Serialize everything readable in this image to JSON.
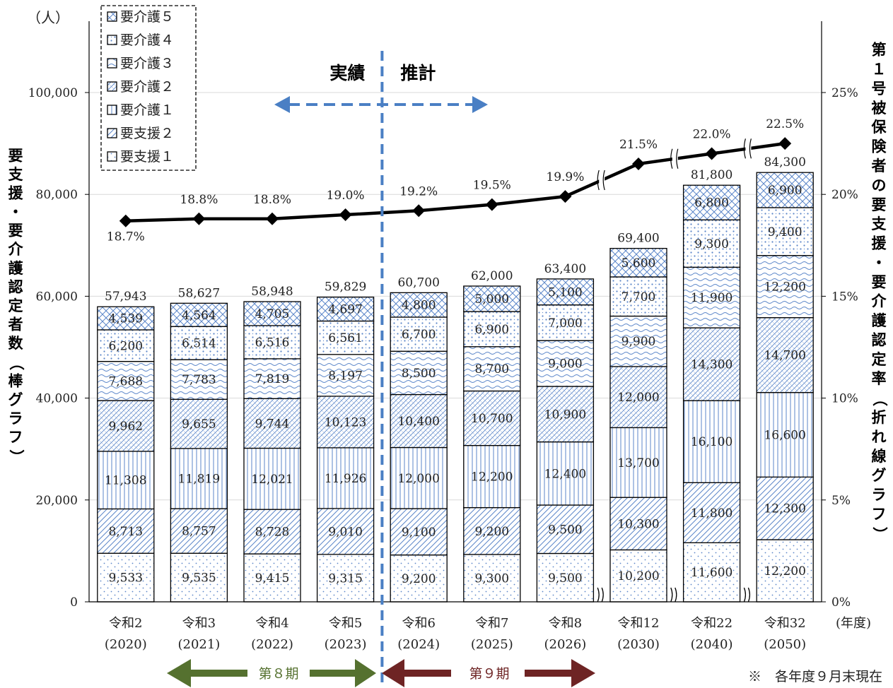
{
  "chart_data": {
    "type": "bar",
    "left_unit": "（人）",
    "right_unit": "",
    "ylabel_left": "要支援・要介護認定者数（棒グラフ）",
    "ylabel_right": "第１号被保険者の要支援・要介護認定率（折れ線グラフ）",
    "ylim_left": [
      0,
      100000
    ],
    "yticks_left": [
      "0",
      "20,000",
      "40,000",
      "60,000",
      "80,000",
      "100,000"
    ],
    "ylim_right": [
      0,
      25
    ],
    "yticks_right": [
      "0%",
      "5%",
      "10%",
      "15%",
      "20%",
      "25%"
    ],
    "x_unit": "(年度)",
    "categories": [
      {
        "era": "令和2",
        "year": "(2020)"
      },
      {
        "era": "令和3",
        "year": "(2021)"
      },
      {
        "era": "令和4",
        "year": "(2022)"
      },
      {
        "era": "令和5",
        "year": "(2023)"
      },
      {
        "era": "令和6",
        "year": "(2024)"
      },
      {
        "era": "令和7",
        "year": "(2025)"
      },
      {
        "era": "令和8",
        "year": "(2026)"
      },
      {
        "era": "令和12",
        "year": "(2030)"
      },
      {
        "era": "令和22",
        "year": "(2040)"
      },
      {
        "era": "令和32",
        "year": "(2050)"
      }
    ],
    "series": [
      {
        "name": "要支援１",
        "values": [
          9533,
          9535,
          9415,
          9315,
          9200,
          9300,
          9500,
          10200,
          11600,
          12200
        ],
        "labels": [
          "9,533",
          "9,535",
          "9,415",
          "9,315",
          "9,200",
          "9,300",
          "9,500",
          "10,200",
          "11,600",
          "12,200"
        ]
      },
      {
        "name": "要支援２",
        "values": [
          8713,
          8757,
          8728,
          9010,
          9100,
          9200,
          9500,
          10300,
          11800,
          12300
        ],
        "labels": [
          "8,713",
          "8,757",
          "8,728",
          "9,010",
          "9,100",
          "9,200",
          "9,500",
          "10,300",
          "11,800",
          "12,300"
        ]
      },
      {
        "name": "要介護１",
        "values": [
          11308,
          11819,
          12021,
          11926,
          12000,
          12200,
          12400,
          13700,
          16100,
          16600
        ],
        "labels": [
          "11,308",
          "11,819",
          "12,021",
          "11,926",
          "12,000",
          "12,200",
          "12,400",
          "13,700",
          "16,100",
          "16,600"
        ]
      },
      {
        "name": "要介護２",
        "values": [
          9962,
          9655,
          9744,
          10123,
          10400,
          10700,
          10900,
          12000,
          14300,
          14700
        ],
        "labels": [
          "9,962",
          "9,655",
          "9,744",
          "10,123",
          "10,400",
          "10,700",
          "10,900",
          "12,000",
          "14,300",
          "14,700"
        ]
      },
      {
        "name": "要介護３",
        "values": [
          7688,
          7783,
          7819,
          8197,
          8500,
          8700,
          9000,
          9900,
          11900,
          12200
        ],
        "labels": [
          "7,688",
          "7,783",
          "7,819",
          "8,197",
          "8,500",
          "8,700",
          "9,000",
          "9,900",
          "11,900",
          "12,200"
        ]
      },
      {
        "name": "要介護４",
        "values": [
          6200,
          6514,
          6516,
          6561,
          6700,
          6900,
          7000,
          7700,
          9300,
          9400
        ],
        "labels": [
          "6,200",
          "6,514",
          "6,516",
          "6,561",
          "6,700",
          "6,900",
          "7,000",
          "7,700",
          "9,300",
          "9,400"
        ]
      },
      {
        "name": "要介護５",
        "values": [
          4539,
          4564,
          4705,
          4697,
          4800,
          5000,
          5100,
          5600,
          6800,
          6900
        ],
        "labels": [
          "4,539",
          "4,564",
          "4,705",
          "4,697",
          "4,800",
          "5,000",
          "5,100",
          "5,600",
          "6,800",
          "6,900"
        ]
      }
    ],
    "totals": [
      57943,
      58627,
      58948,
      59829,
      60700,
      62000,
      63400,
      69400,
      81800,
      84300
    ],
    "total_labels": [
      "57,943",
      "58,627",
      "58,948",
      "59,829",
      "60,700",
      "62,000",
      "63,400",
      "69,400",
      "81,800",
      "84,300"
    ],
    "rate": {
      "name": "第１号被保険者の要支援・要介護認定率",
      "values": [
        18.7,
        18.8,
        18.8,
        19.0,
        19.2,
        19.5,
        19.9,
        21.5,
        22.0,
        22.5
      ],
      "labels": [
        "18.7%",
        "18.8%",
        "18.8%",
        "19.0%",
        "19.2%",
        "19.5%",
        "19.9%",
        "21.5%",
        "22.0%",
        "22.5%"
      ]
    },
    "legend_position": "top-left",
    "legend_order": [
      "要介護５",
      "要介護４",
      "要介護３",
      "要介護２",
      "要介護１",
      "要支援２",
      "要支援１"
    ],
    "actual_label": "実績",
    "forecast_label": "推計",
    "period8_label": "第８期",
    "period9_label": "第９期",
    "footnote": "※　各年度９月末現在",
    "colors": {
      "pattern": "#5b86c9",
      "divider": "#4a7fc4",
      "period8_arrow": "#55712f",
      "period9_arrow": "#6e2424",
      "line": "#000000",
      "grid": "#d9d9d9"
    }
  }
}
